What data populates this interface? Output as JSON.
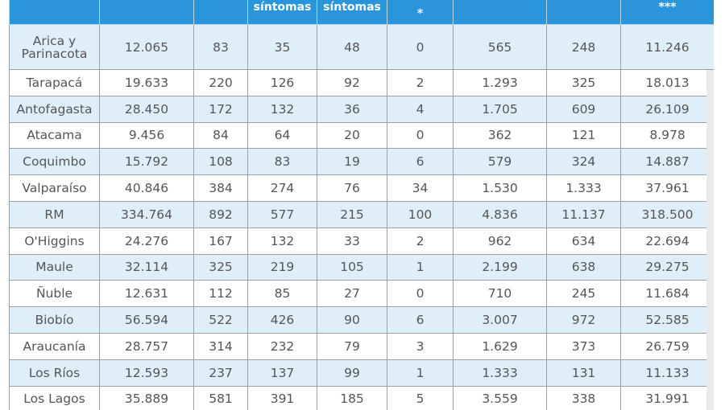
{
  "table": {
    "headers": [
      "",
      "",
      "",
      "síntomas",
      "síntomas",
      "*",
      "",
      "",
      "***"
    ],
    "rows": [
      {
        "region": "Arica y Parinacota",
        "values": [
          "12.065",
          "83",
          "35",
          "48",
          "0",
          "565",
          "248",
          "11.246"
        ]
      },
      {
        "region": "Tarapacá",
        "values": [
          "19.633",
          "220",
          "126",
          "92",
          "2",
          "1.293",
          "325",
          "18.013"
        ]
      },
      {
        "region": "Antofagasta",
        "values": [
          "28.450",
          "172",
          "132",
          "36",
          "4",
          "1.705",
          "609",
          "26.109"
        ]
      },
      {
        "region": "Atacama",
        "values": [
          "9.456",
          "84",
          "64",
          "20",
          "0",
          "362",
          "121",
          "8.978"
        ]
      },
      {
        "region": "Coquimbo",
        "values": [
          "15.792",
          "108",
          "83",
          "19",
          "6",
          "579",
          "324",
          "14.887"
        ]
      },
      {
        "region": "Valparaíso",
        "values": [
          "40.846",
          "384",
          "274",
          "76",
          "34",
          "1.530",
          "1.333",
          "37.961"
        ]
      },
      {
        "region": "RM",
        "values": [
          "334.764",
          "892",
          "577",
          "215",
          "100",
          "4.836",
          "11.137",
          "318.500"
        ]
      },
      {
        "region": "O'Higgins",
        "values": [
          "24.276",
          "167",
          "132",
          "33",
          "2",
          "962",
          "634",
          "22.694"
        ]
      },
      {
        "region": "Maule",
        "values": [
          "32.114",
          "325",
          "219",
          "105",
          "1",
          "2.199",
          "638",
          "29.275"
        ]
      },
      {
        "region": "Ñuble",
        "values": [
          "12.631",
          "112",
          "85",
          "27",
          "0",
          "710",
          "245",
          "11.684"
        ]
      },
      {
        "region": "Biobío",
        "values": [
          "56.594",
          "522",
          "426",
          "90",
          "6",
          "3.007",
          "972",
          "52.585"
        ]
      },
      {
        "region": "Araucanía",
        "values": [
          "28.757",
          "314",
          "232",
          "79",
          "3",
          "1.629",
          "373",
          "26.759"
        ]
      },
      {
        "region": "Los Ríos",
        "values": [
          "12.593",
          "237",
          "137",
          "99",
          "1",
          "1.333",
          "131",
          "11.133"
        ]
      },
      {
        "region": "Los Lagos",
        "values": [
          "35.889",
          "581",
          "391",
          "185",
          "5",
          "3.559",
          "338",
          "31.991"
        ]
      }
    ]
  },
  "colors": {
    "header_bg": "#2b95db",
    "row_blue": "#dfeff9",
    "row_white": "#ffffff",
    "text": "#555555"
  }
}
